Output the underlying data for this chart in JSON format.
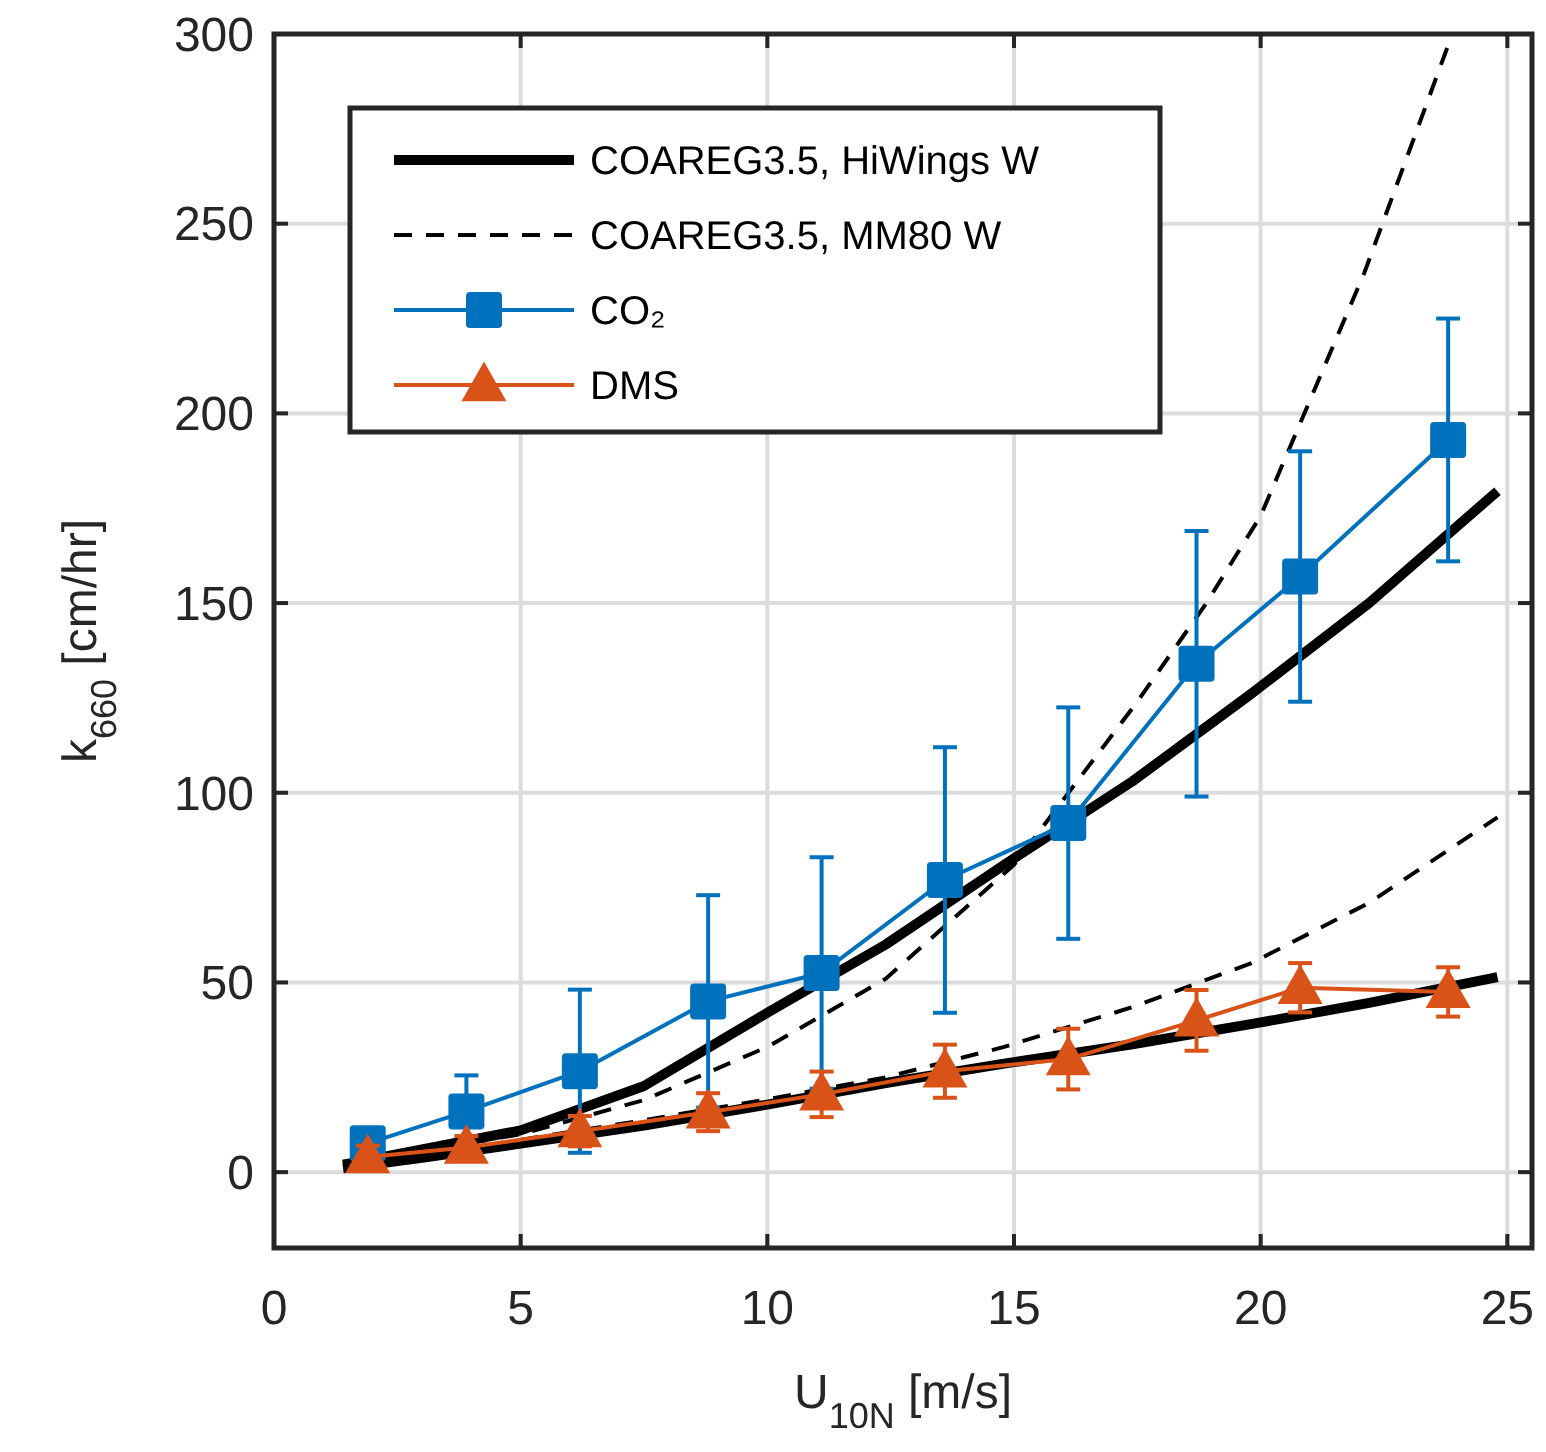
{
  "chart_data": {
    "type": "line",
    "xlabel": "U$_{10N}$ [m/s]",
    "ylabel": "k$_{660}$ [cm/hr]",
    "xlim": [
      0,
      25.5
    ],
    "ylim": [
      -20,
      300
    ],
    "xticks": [
      0,
      5,
      10,
      15,
      20,
      25
    ],
    "yticks": [
      0,
      50,
      100,
      150,
      200,
      250,
      300
    ],
    "grid": true,
    "legend": "top left",
    "series": [
      {
        "name": "COAREG3.5, HiWings W",
        "color": "#000000",
        "line_style": "solid",
        "marker": "none",
        "x": [
          1.4,
          3,
          5,
          7.5,
          10,
          12.4,
          14.8,
          17.4,
          19.8,
          22.2,
          24.8
        ],
        "values": [
          2,
          6,
          11,
          22.7,
          42,
          60,
          81,
          103,
          126,
          150,
          179.5
        ]
      },
      {
        "name": "COAREG3.5, MM80 W",
        "color": "#000000",
        "line_style": "dashed",
        "marker": "none",
        "x": [
          1.4,
          3,
          5,
          7.5,
          10,
          12.4,
          15,
          17.5,
          18.9,
          20,
          22.1,
          23.8
        ],
        "values": [
          2,
          5.5,
          10,
          19,
          33,
          51,
          81,
          124,
          150,
          173,
          237,
          297
        ]
      },
      {
        "color": "#000000",
        "line_style": "solid",
        "marker": "none",
        "x": [
          1.4,
          3,
          5,
          7.5,
          10,
          12.4,
          14.8,
          17.4,
          19.8,
          22.2,
          24.8
        ],
        "values": [
          1,
          3.8,
          7.5,
          12.3,
          17.8,
          23.5,
          28.6,
          33.7,
          39,
          44.6,
          51.4
        ]
      },
      {
        "color": "#000000",
        "line_style": "dashed",
        "marker": "none",
        "x": [
          5,
          7.5,
          10,
          12.4,
          14.8,
          17.4,
          19.8,
          22.2,
          24.8
        ],
        "values": [
          8.5,
          13.7,
          19.2,
          25,
          33,
          43.5,
          55,
          71,
          93.5
        ]
      },
      {
        "name": "CO₂",
        "color": "#0072bd",
        "line_style": "solid",
        "marker": "square",
        "x": [
          1.9,
          3.9,
          6.2,
          8.8,
          11.1,
          13.6,
          16.1,
          18.7,
          20.8,
          23.8
        ],
        "values": [
          7.6,
          16,
          26.6,
          45,
          52.5,
          77,
          92,
          134,
          157,
          193
        ],
        "errors": [
          null,
          9.5,
          21.5,
          28,
          30.5,
          35,
          30.5,
          35,
          33,
          32
        ]
      },
      {
        "name": "DMS",
        "color": "#d95319",
        "line_style": "solid",
        "marker": "triangle",
        "x": [
          1.9,
          3.9,
          6.2,
          8.8,
          11.1,
          13.6,
          16.1,
          18.7,
          20.8,
          23.8
        ],
        "values": [
          4,
          6.5,
          10.8,
          15.8,
          20.5,
          26.6,
          29.8,
          40,
          48.6,
          47.5
        ],
        "errors": [
          3,
          3,
          4,
          5,
          6,
          7,
          8,
          8,
          6.5,
          6.5
        ]
      }
    ]
  }
}
